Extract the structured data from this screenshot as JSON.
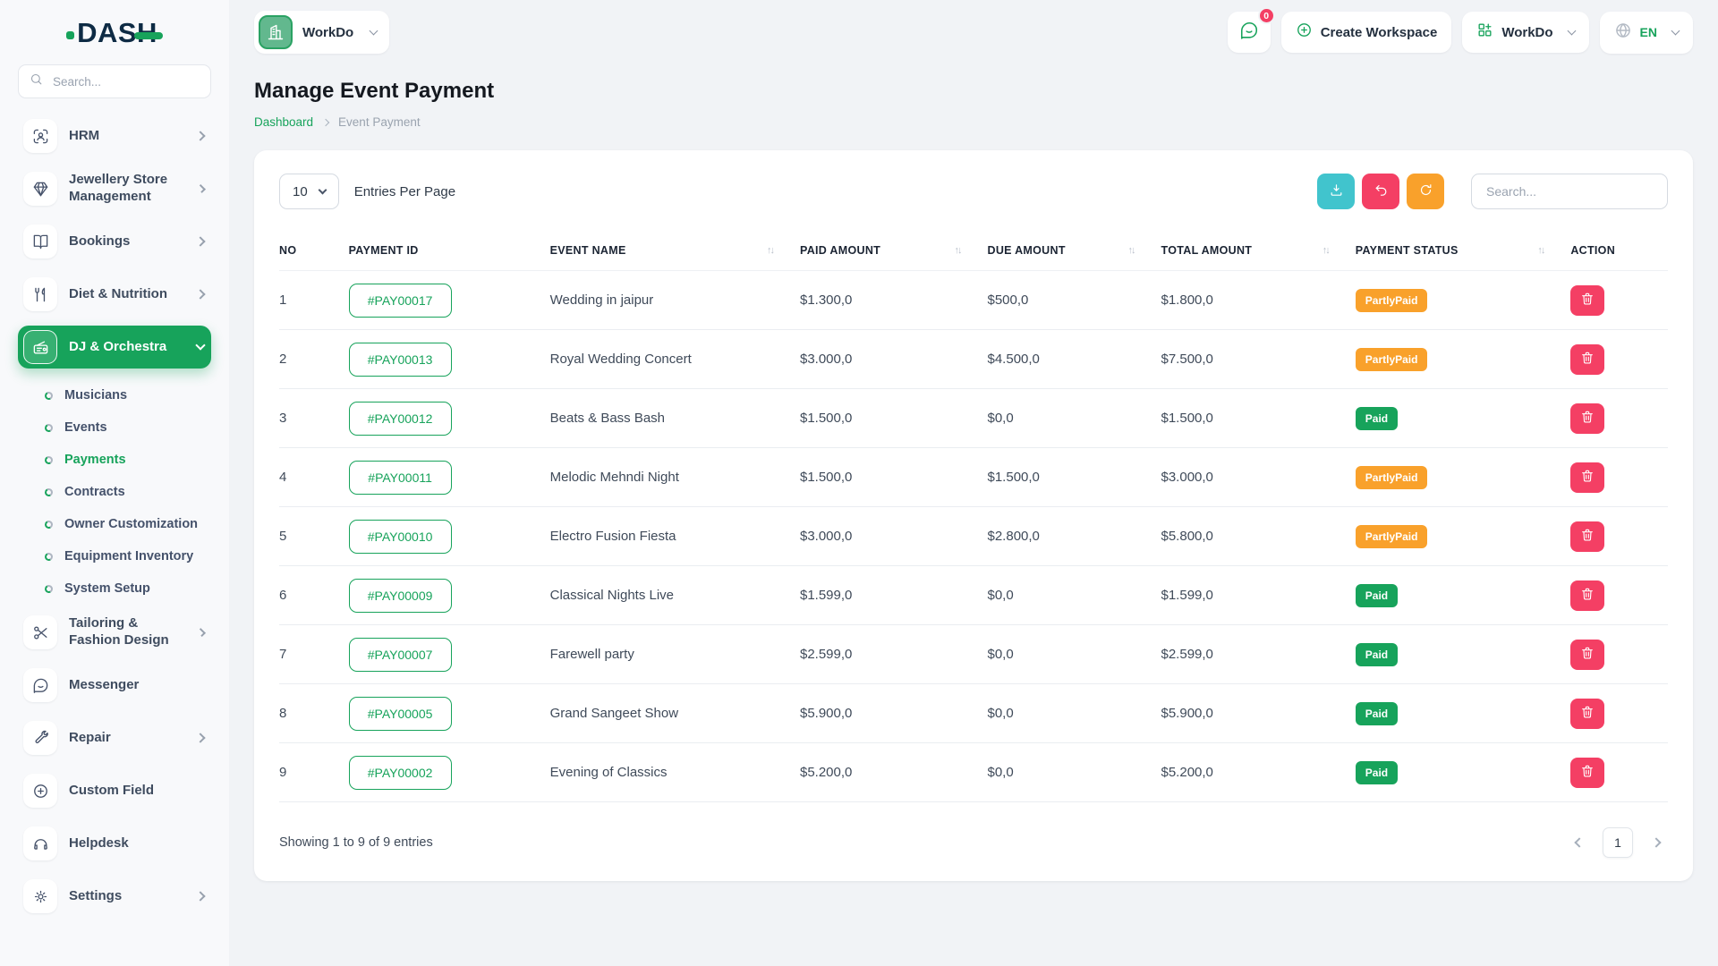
{
  "colors": {
    "accent": "#17a35b",
    "teal": "#41c4cd",
    "pink": "#f43f64",
    "orange": "#f9a12b",
    "navy": "#0e2b44"
  },
  "brand": {
    "name": "DASH"
  },
  "sidebar": {
    "search_placeholder": "Search...",
    "items": [
      {
        "label": "HRM",
        "icon": "hrm-icon",
        "chevron": "right"
      },
      {
        "label": "Jewellery Store Management",
        "icon": "gem-icon",
        "chevron": "right"
      },
      {
        "label": "Bookings",
        "icon": "book-icon",
        "chevron": "right"
      },
      {
        "label": "Diet & Nutrition",
        "icon": "cutlery-icon",
        "chevron": "right"
      },
      {
        "label": "DJ & Orchestra",
        "icon": "radio-icon",
        "chevron": "down",
        "active": true,
        "submenu": [
          {
            "label": "Musicians"
          },
          {
            "label": "Events"
          },
          {
            "label": "Payments",
            "active": true
          },
          {
            "label": "Contracts"
          },
          {
            "label": "Owner Customization"
          },
          {
            "label": "Equipment Inventory"
          },
          {
            "label": "System Setup"
          }
        ]
      },
      {
        "label": "Tailoring & Fashion Design",
        "icon": "scissors-icon",
        "chevron": "right"
      },
      {
        "label": "Messenger",
        "icon": "chat-icon"
      },
      {
        "label": "Repair",
        "icon": "wrench-icon",
        "chevron": "right"
      },
      {
        "label": "Custom Field",
        "icon": "plus-circle-icon"
      },
      {
        "label": "Helpdesk",
        "icon": "headset-icon"
      },
      {
        "label": "Settings",
        "icon": "gear-icon",
        "chevron": "right"
      }
    ]
  },
  "header": {
    "workspace_label": "WorkDo",
    "messages_badge": "0",
    "create_workspace_label": "Create Workspace",
    "workspace_switcher_label": "WorkDo",
    "language": "EN"
  },
  "page": {
    "title": "Manage Event Payment",
    "breadcrumb": {
      "home": "Dashboard",
      "current": "Event Payment"
    }
  },
  "toolbar": {
    "entries_per_page_value": "10",
    "entries_per_page_label": "Entries Per Page",
    "search_placeholder": "Search..."
  },
  "table": {
    "columns": [
      {
        "label": "NO",
        "sortable": false
      },
      {
        "label": "PAYMENT ID",
        "sortable": false
      },
      {
        "label": "EVENT NAME",
        "sortable": true
      },
      {
        "label": "PAID AMOUNT",
        "sortable": true
      },
      {
        "label": "DUE AMOUNT",
        "sortable": true
      },
      {
        "label": "TOTAL AMOUNT",
        "sortable": true
      },
      {
        "label": "PAYMENT STATUS",
        "sortable": true
      },
      {
        "label": "ACTION",
        "sortable": false
      }
    ],
    "rows": [
      {
        "no": "1",
        "payment_id": "#PAY00017",
        "event_name": "Wedding in jaipur",
        "paid": "$1.300,0",
        "due": "$500,0",
        "total": "$1.800,0",
        "status": "PartlyPaid"
      },
      {
        "no": "2",
        "payment_id": "#PAY00013",
        "event_name": "Royal Wedding Concert",
        "paid": "$3.000,0",
        "due": "$4.500,0",
        "total": "$7.500,0",
        "status": "PartlyPaid"
      },
      {
        "no": "3",
        "payment_id": "#PAY00012",
        "event_name": "Beats & Bass Bash",
        "paid": "$1.500,0",
        "due": "$0,0",
        "total": "$1.500,0",
        "status": "Paid"
      },
      {
        "no": "4",
        "payment_id": "#PAY00011",
        "event_name": "Melodic Mehndi Night",
        "paid": "$1.500,0",
        "due": "$1.500,0",
        "total": "$3.000,0",
        "status": "PartlyPaid"
      },
      {
        "no": "5",
        "payment_id": "#PAY00010",
        "event_name": "Electro Fusion Fiesta",
        "paid": "$3.000,0",
        "due": "$2.800,0",
        "total": "$5.800,0",
        "status": "PartlyPaid"
      },
      {
        "no": "6",
        "payment_id": "#PAY00009",
        "event_name": "Classical Nights Live",
        "paid": "$1.599,0",
        "due": "$0,0",
        "total": "$1.599,0",
        "status": "Paid"
      },
      {
        "no": "7",
        "payment_id": "#PAY00007",
        "event_name": "Farewell party",
        "paid": "$2.599,0",
        "due": "$0,0",
        "total": "$2.599,0",
        "status": "Paid"
      },
      {
        "no": "8",
        "payment_id": "#PAY00005",
        "event_name": "Grand Sangeet Show",
        "paid": "$5.900,0",
        "due": "$0,0",
        "total": "$5.900,0",
        "status": "Paid"
      },
      {
        "no": "9",
        "payment_id": "#PAY00002",
        "event_name": "Evening of Classics",
        "paid": "$5.200,0",
        "due": "$0,0",
        "total": "$5.200,0",
        "status": "Paid"
      }
    ],
    "sort_glyph": "↑↓"
  },
  "footer": {
    "showing_text": "Showing 1 to 9 of 9 entries",
    "page": "1"
  }
}
